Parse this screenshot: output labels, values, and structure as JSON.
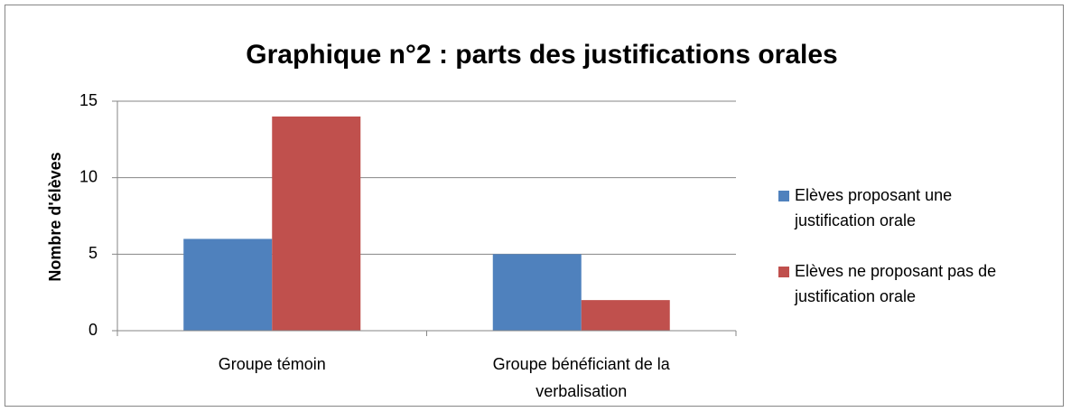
{
  "chart_data": {
    "type": "bar",
    "title": "Graphique n°2 : parts des justifications orales",
    "y_label": "Nombre d'élèves",
    "categories": [
      "Groupe témoin",
      "Groupe bénéficiant de la verbalisation"
    ],
    "series": [
      {
        "name": "Elèves proposant une justification orale",
        "color": "#4f81bd",
        "values": [
          6,
          5
        ]
      },
      {
        "name": "Elèves ne proposant pas de justification orale",
        "color": "#c0504d",
        "values": [
          14,
          2
        ]
      }
    ],
    "ylim": [
      0,
      15
    ],
    "yticks": [
      0,
      5,
      10,
      15
    ],
    "grid": true,
    "legend": "right"
  }
}
